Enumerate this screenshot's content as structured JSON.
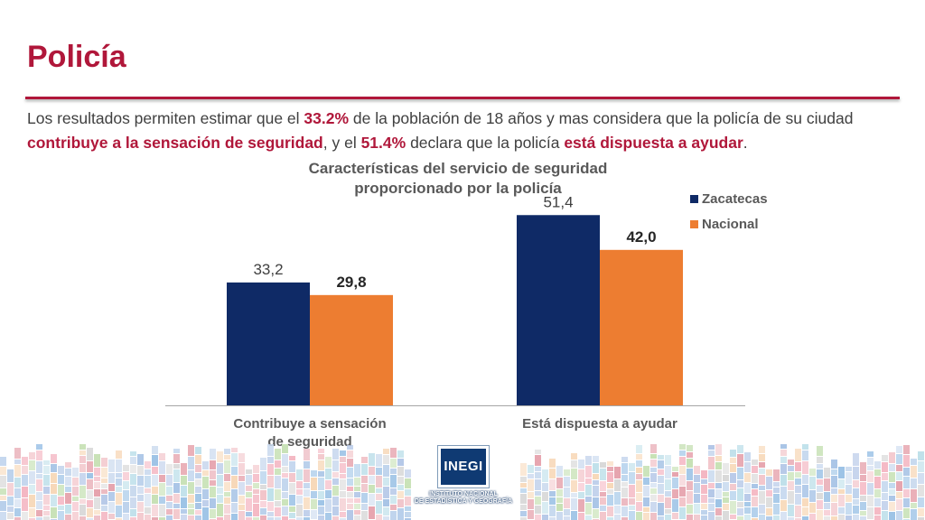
{
  "slide": {
    "title": "Policía",
    "summary": [
      {
        "text": "Los resultados permiten estimar que el ",
        "highlight": false
      },
      {
        "text": "33.2%",
        "highlight": true
      },
      {
        "text": " de la población de 18 años y mas considera que la policía de su ciudad  ",
        "highlight": false
      },
      {
        "text": "contribuye a la sensación de seguridad",
        "highlight": true
      },
      {
        "text": ", y el ",
        "highlight": false
      },
      {
        "text": "51.4%",
        "highlight": true
      },
      {
        "text": " declara que la policía ",
        "highlight": false
      },
      {
        "text": "está dispuesta a ayudar",
        "highlight": true
      },
      {
        "text": ".",
        "highlight": false
      }
    ]
  },
  "chart_data": {
    "type": "bar",
    "title": [
      "Características del servicio de seguridad",
      "proporcionado por la policía"
    ],
    "categories": [
      [
        "Contribuye a sensación",
        "de seguridad"
      ],
      [
        "Está dispuesta a ayudar"
      ]
    ],
    "series": [
      {
        "name": "Zacatecas",
        "color": "#0f2a66",
        "values": [
          33.2,
          51.4
        ],
        "labels": [
          "33,2",
          "51,4"
        ],
        "label_bold": false
      },
      {
        "name": "Nacional",
        "color": "#ed7d31",
        "values": [
          29.8,
          42.0
        ],
        "labels": [
          "29,8",
          "42,0"
        ],
        "label_bold": true
      }
    ],
    "ylim": [
      0,
      60
    ],
    "grid": false,
    "legend": "top-right"
  },
  "logo": {
    "name": "INEGI",
    "caption": [
      "INSTITUTO NACIONAL",
      "DE ESTADÍSTICA Y GEOGRAFÍA"
    ]
  },
  "colors": {
    "accent": "#b0173a",
    "footer_palette": [
      "#c9d9ee",
      "#a8c4e6",
      "#f2c4c9",
      "#e6a3ad",
      "#bfe0ea",
      "#f7d8b8",
      "#d9d9d9",
      "#9dc3e6",
      "#c7e1b5",
      "#f4b6c2",
      "#b4c7e7"
    ]
  }
}
